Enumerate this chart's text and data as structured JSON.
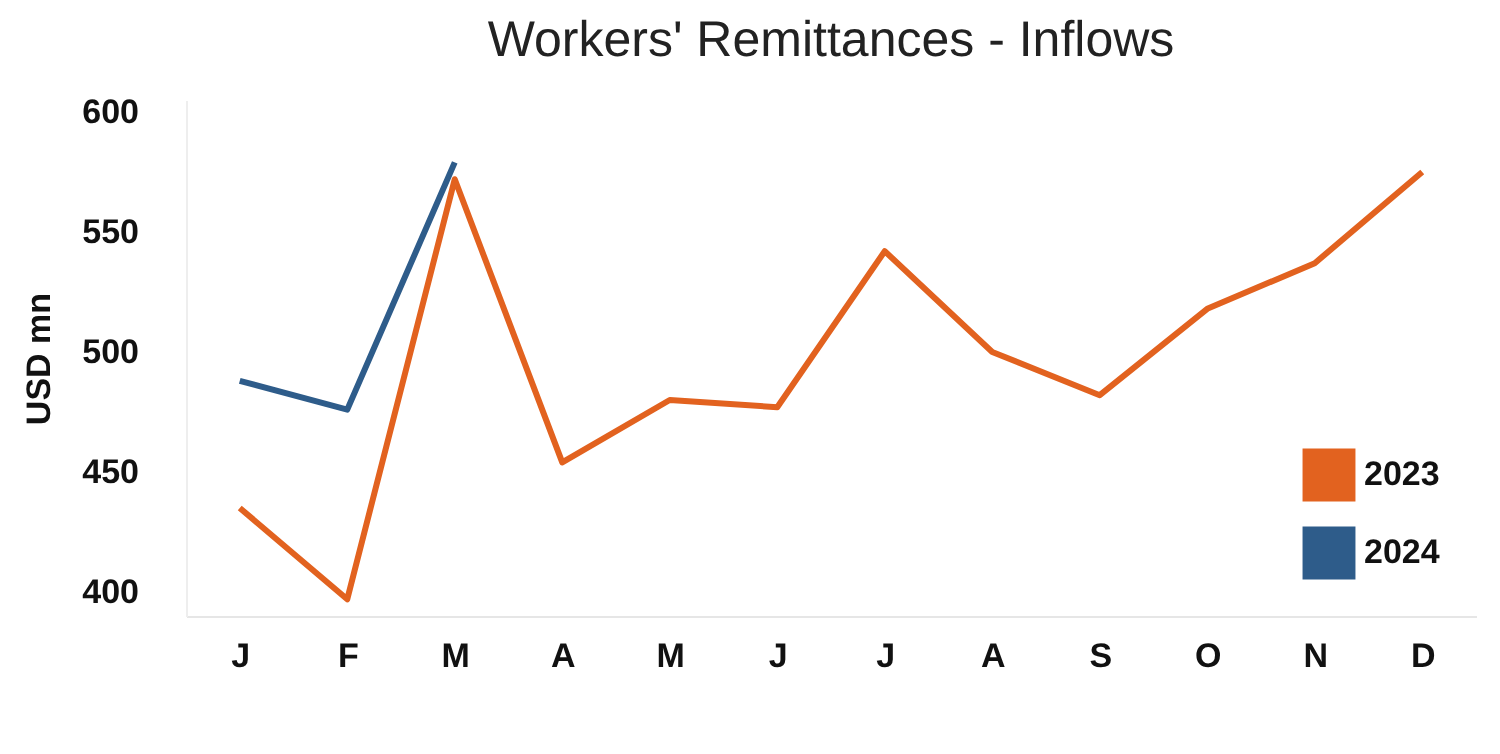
{
  "chart_data": {
    "type": "line",
    "title": "Workers' Remittances - Inflows",
    "ylabel": "USD mn",
    "categories": [
      "J",
      "F",
      "M",
      "A",
      "M",
      "J",
      "J",
      "A",
      "S",
      "O",
      "N",
      "D"
    ],
    "series": [
      {
        "name": "2023",
        "color": "#e2621f",
        "values": [
          435,
          397,
          572,
          454,
          480,
          477,
          542,
          500,
          482,
          518,
          537,
          575
        ]
      },
      {
        "name": "2024",
        "color": "#2e5c8a",
        "values": [
          488,
          476,
          579,
          null,
          null,
          null,
          null,
          null,
          null,
          null,
          null,
          null
        ]
      }
    ],
    "ylim": [
      390,
      605
    ],
    "yticks": [
      400,
      450,
      500,
      550,
      600
    ],
    "grid": false,
    "legend": "bottom right",
    "marker": "none",
    "line_style": "solid"
  }
}
